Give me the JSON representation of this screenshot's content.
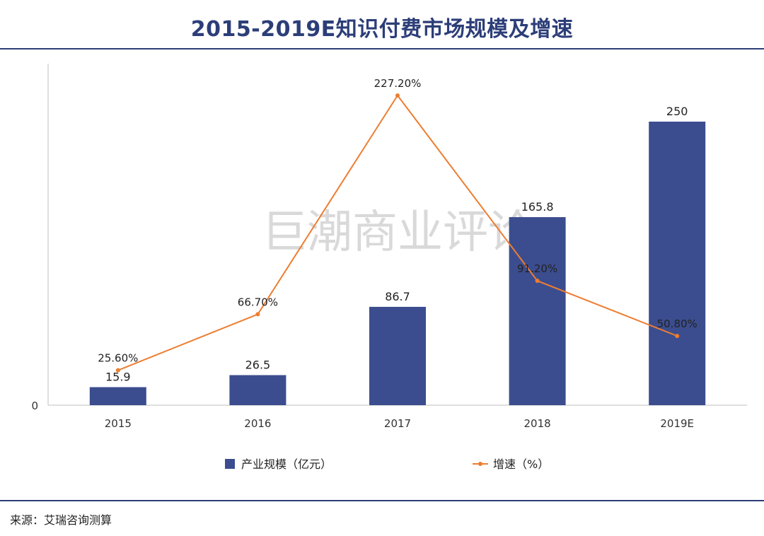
{
  "header": {
    "title": "2015-2019E知识付费市场规模及增速"
  },
  "footer": {
    "source": "来源：艾瑞咨询测算"
  },
  "watermark": {
    "text": "巨潮商业评论"
  },
  "colors": {
    "bar": "#3b4d8f",
    "line": "#ed7d31",
    "title": "#2c3e78",
    "axis": "#bfbfbf",
    "watermark": "#d9d9d9"
  },
  "chart_data": {
    "type": "bar",
    "title": "2015-2019E知识付费市场规模及增速",
    "categories": [
      "2015",
      "2016",
      "2017",
      "2018",
      "2019E"
    ],
    "xlabel": "",
    "ylabel": "",
    "ylim": [
      0,
      285
    ],
    "y_tick_labels": [
      "0"
    ],
    "grid": false,
    "legend_position": "bottom",
    "series": [
      {
        "name": "产业规模（亿元）",
        "type": "bar",
        "values": [
          15.9,
          26.5,
          86.7,
          165.8,
          250
        ],
        "labels": [
          "15.9",
          "26.5",
          "86.7",
          "165.8",
          "250"
        ]
      },
      {
        "name": "增速（%）",
        "type": "line",
        "axis": "secondary",
        "ylim": [
          0,
          260
        ],
        "values": [
          25.6,
          66.7,
          227.2,
          91.2,
          50.8
        ],
        "labels": [
          "25.60%",
          "66.70%",
          "227.20%",
          "91.20%",
          "50.80%"
        ]
      }
    ]
  }
}
